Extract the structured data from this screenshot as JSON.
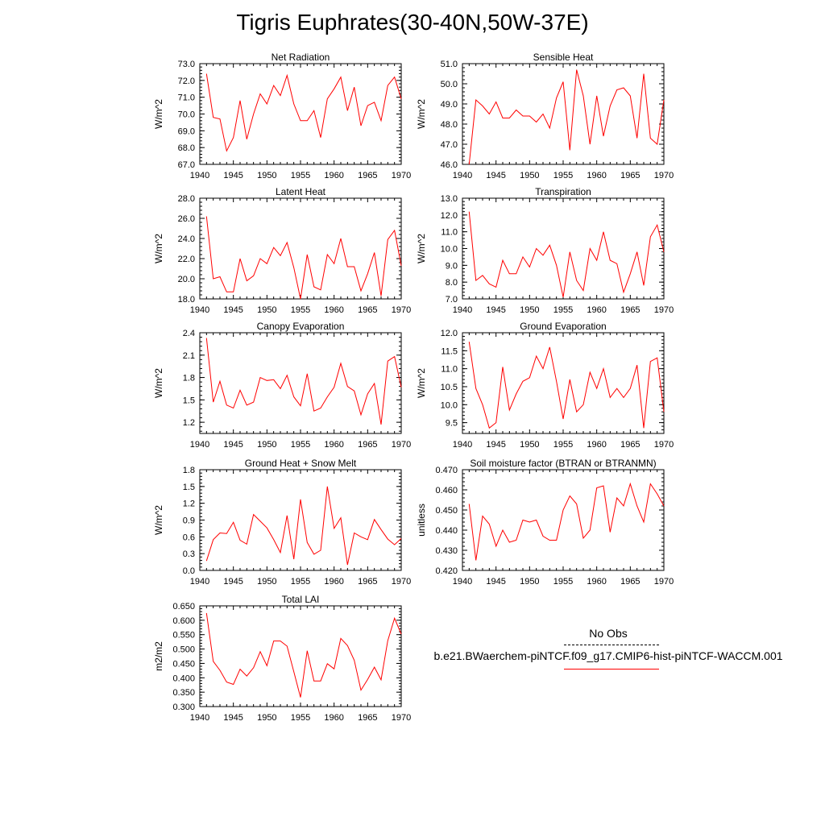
{
  "title": "Tigris Euphrates(30-40N,50W-37E)",
  "legend": {
    "obs_label": "No Obs",
    "model_label": "b.e21.BWaerchem-piNTCF.f09_g17.CMIP6-hist-piNTCF-WACCM.001",
    "model_color": "#ff0000"
  },
  "chart_data": [
    {
      "type": "line",
      "title": "Net Radiation",
      "ylabel": "W/m^2",
      "x": [
        1941,
        1942,
        1943,
        1944,
        1945,
        1946,
        1947,
        1948,
        1949,
        1950,
        1951,
        1952,
        1953,
        1954,
        1955,
        1956,
        1957,
        1958,
        1959,
        1960,
        1961,
        1962,
        1963,
        1964,
        1965,
        1966,
        1967,
        1968,
        1969,
        1970
      ],
      "y": [
        72.4,
        69.8,
        69.7,
        67.8,
        68.6,
        70.8,
        68.5,
        70.0,
        71.2,
        70.6,
        71.7,
        71.1,
        72.3,
        70.6,
        69.6,
        69.6,
        70.2,
        68.6,
        70.9,
        71.5,
        72.2,
        70.2,
        71.6,
        69.3,
        70.5,
        70.7,
        69.6,
        71.7,
        72.2,
        70.9
      ],
      "xlim": [
        1940,
        1970
      ],
      "ylim": [
        67.0,
        73.0
      ],
      "xticks": [
        "1940",
        "1945",
        "1950",
        "1955",
        "1960",
        "1965",
        "1970"
      ],
      "yticks": [
        "67.0",
        "68.0",
        "69.0",
        "70.0",
        "71.0",
        "72.0",
        "73.0"
      ],
      "color": "#ff0000"
    },
    {
      "type": "line",
      "title": "Sensible Heat",
      "ylabel": "W/m^2",
      "x": [
        1941,
        1942,
        1943,
        1944,
        1945,
        1946,
        1947,
        1948,
        1949,
        1950,
        1951,
        1952,
        1953,
        1954,
        1955,
        1956,
        1957,
        1958,
        1959,
        1960,
        1961,
        1962,
        1963,
        1964,
        1965,
        1966,
        1967,
        1968,
        1969,
        1970
      ],
      "y": [
        46.0,
        49.2,
        48.9,
        48.5,
        49.1,
        48.3,
        48.3,
        48.7,
        48.4,
        48.4,
        48.1,
        48.5,
        47.8,
        49.3,
        50.1,
        46.7,
        50.7,
        49.4,
        47.0,
        49.4,
        47.4,
        48.9,
        49.7,
        49.8,
        49.4,
        47.3,
        50.5,
        47.3,
        47.0,
        49.2
      ],
      "xlim": [
        1940,
        1970
      ],
      "ylim": [
        46.0,
        51.0
      ],
      "xticks": [
        "1940",
        "1945",
        "1950",
        "1955",
        "1960",
        "1965",
        "1970"
      ],
      "yticks": [
        "46.0",
        "47.0",
        "48.0",
        "49.0",
        "50.0",
        "51.0"
      ],
      "color": "#ff0000"
    },
    {
      "type": "line",
      "title": "Latent Heat",
      "ylabel": "W/m^2",
      "x": [
        1941,
        1942,
        1943,
        1944,
        1945,
        1946,
        1947,
        1948,
        1949,
        1950,
        1951,
        1952,
        1953,
        1954,
        1955,
        1956,
        1957,
        1958,
        1959,
        1960,
        1961,
        1962,
        1963,
        1964,
        1965,
        1966,
        1967,
        1968,
        1969,
        1970
      ],
      "y": [
        26.2,
        20.0,
        20.2,
        18.7,
        18.7,
        22.0,
        19.8,
        20.3,
        22.0,
        21.5,
        23.1,
        22.3,
        23.6,
        21.1,
        18.0,
        22.4,
        19.2,
        18.9,
        22.4,
        21.5,
        24.0,
        21.2,
        21.2,
        18.8,
        20.5,
        22.6,
        18.3,
        23.9,
        24.8,
        21.3
      ],
      "xlim": [
        1940,
        1970
      ],
      "ylim": [
        18.0,
        28.0
      ],
      "xticks": [
        "1940",
        "1945",
        "1950",
        "1955",
        "1960",
        "1965",
        "1970"
      ],
      "yticks": [
        "18.0",
        "20.0",
        "22.0",
        "24.0",
        "26.0",
        "28.0"
      ],
      "color": "#ff0000"
    },
    {
      "type": "line",
      "title": "Transpiration",
      "ylabel": "W/m^2",
      "x": [
        1941,
        1942,
        1943,
        1944,
        1945,
        1946,
        1947,
        1948,
        1949,
        1950,
        1951,
        1952,
        1953,
        1954,
        1955,
        1956,
        1957,
        1958,
        1959,
        1960,
        1961,
        1962,
        1963,
        1964,
        1965,
        1966,
        1967,
        1968,
        1969,
        1970
      ],
      "y": [
        12.2,
        8.1,
        8.4,
        7.9,
        7.7,
        9.3,
        8.5,
        8.5,
        9.5,
        8.9,
        10.0,
        9.6,
        10.2,
        9.0,
        7.1,
        9.8,
        8.1,
        7.5,
        10.0,
        9.3,
        11.0,
        9.3,
        9.1,
        7.4,
        8.5,
        9.8,
        7.8,
        10.7,
        11.4,
        9.8
      ],
      "xlim": [
        1940,
        1970
      ],
      "ylim": [
        7.0,
        13.0
      ],
      "xticks": [
        "1940",
        "1945",
        "1950",
        "1955",
        "1960",
        "1965",
        "1970"
      ],
      "yticks": [
        "7.0",
        "8.0",
        "9.0",
        "10.0",
        "11.0",
        "12.0",
        "13.0"
      ],
      "color": "#ff0000"
    },
    {
      "type": "line",
      "title": "Canopy Evaporation",
      "ylabel": "W/m^2",
      "x": [
        1941,
        1942,
        1943,
        1944,
        1945,
        1946,
        1947,
        1948,
        1949,
        1950,
        1951,
        1952,
        1953,
        1954,
        1955,
        1956,
        1957,
        1958,
        1959,
        1960,
        1961,
        1962,
        1963,
        1964,
        1965,
        1966,
        1967,
        1968,
        1969,
        1970
      ],
      "y": [
        2.33,
        1.47,
        1.75,
        1.43,
        1.39,
        1.63,
        1.43,
        1.47,
        1.8,
        1.76,
        1.77,
        1.65,
        1.83,
        1.54,
        1.42,
        1.85,
        1.35,
        1.39,
        1.54,
        1.67,
        1.99,
        1.68,
        1.62,
        1.3,
        1.58,
        1.72,
        1.17,
        2.02,
        2.08,
        1.67
      ],
      "xlim": [
        1940,
        1970
      ],
      "ylim": [
        1.05,
        2.4
      ],
      "xticks": [
        "1940",
        "1945",
        "1950",
        "1955",
        "1960",
        "1965",
        "1970"
      ],
      "yticks": [
        "1.2",
        "1.5",
        "1.8",
        "2.1",
        "2.4"
      ],
      "yticks_values": [
        1.2,
        1.5,
        1.8,
        2.1,
        2.4
      ],
      "color": "#ff0000"
    },
    {
      "type": "line",
      "title": "Ground Evaporation",
      "ylabel": "W/m^2",
      "x": [
        1941,
        1942,
        1943,
        1944,
        1945,
        1946,
        1947,
        1948,
        1949,
        1950,
        1951,
        1952,
        1953,
        1954,
        1955,
        1956,
        1957,
        1958,
        1959,
        1960,
        1961,
        1962,
        1963,
        1964,
        1965,
        1966,
        1967,
        1968,
        1969,
        1970
      ],
      "y": [
        11.75,
        10.45,
        10.0,
        9.35,
        9.5,
        11.05,
        9.85,
        10.3,
        10.65,
        10.75,
        11.35,
        11.0,
        11.6,
        10.65,
        9.6,
        10.7,
        9.8,
        10.0,
        10.9,
        10.45,
        11.0,
        10.2,
        10.45,
        10.2,
        10.45,
        11.1,
        9.35,
        11.2,
        11.3,
        9.8
      ],
      "xlim": [
        1940,
        1970
      ],
      "ylim": [
        9.2,
        12.0
      ],
      "xticks": [
        "1940",
        "1945",
        "1950",
        "1955",
        "1960",
        "1965",
        "1970"
      ],
      "yticks": [
        "9.5",
        "10.0",
        "10.5",
        "11.0",
        "11.5",
        "12.0"
      ],
      "yticks_values": [
        9.5,
        10.0,
        10.5,
        11.0,
        11.5,
        12.0
      ],
      "color": "#ff0000"
    },
    {
      "type": "line",
      "title": "Ground Heat + Snow Melt",
      "ylabel": "W/m^2",
      "x": [
        1941,
        1942,
        1943,
        1944,
        1945,
        1946,
        1947,
        1948,
        1949,
        1950,
        1951,
        1952,
        1953,
        1954,
        1955,
        1956,
        1957,
        1958,
        1959,
        1960,
        1961,
        1962,
        1963,
        1964,
        1965,
        1966,
        1967,
        1968,
        1969,
        1970
      ],
      "y": [
        0.17,
        0.55,
        0.67,
        0.66,
        0.86,
        0.54,
        0.47,
        1.0,
        0.88,
        0.76,
        0.55,
        0.32,
        0.98,
        0.2,
        1.27,
        0.5,
        0.29,
        0.36,
        1.5,
        0.75,
        0.94,
        0.1,
        0.67,
        0.6,
        0.55,
        0.91,
        0.73,
        0.56,
        0.46,
        0.57
      ],
      "xlim": [
        1940,
        1970
      ],
      "ylim": [
        0.0,
        1.8
      ],
      "xticks": [
        "1940",
        "1945",
        "1950",
        "1955",
        "1960",
        "1965",
        "1970"
      ],
      "yticks": [
        "0.0",
        "0.3",
        "0.6",
        "0.9",
        "1.2",
        "1.5",
        "1.8"
      ],
      "color": "#ff0000"
    },
    {
      "type": "line",
      "title": "Soil moisture factor (BTRAN or BTRANMN)",
      "ylabel": "unitless",
      "x": [
        1941,
        1942,
        1943,
        1944,
        1945,
        1946,
        1947,
        1948,
        1949,
        1950,
        1951,
        1952,
        1953,
        1954,
        1955,
        1956,
        1957,
        1958,
        1959,
        1960,
        1961,
        1962,
        1963,
        1964,
        1965,
        1966,
        1967,
        1968,
        1969,
        1970
      ],
      "y": [
        0.453,
        0.425,
        0.447,
        0.443,
        0.432,
        0.44,
        0.434,
        0.435,
        0.445,
        0.444,
        0.445,
        0.437,
        0.435,
        0.435,
        0.45,
        0.457,
        0.453,
        0.436,
        0.44,
        0.461,
        0.462,
        0.439,
        0.456,
        0.452,
        0.463,
        0.452,
        0.444,
        0.463,
        0.458,
        0.452
      ],
      "xlim": [
        1940,
        1970
      ],
      "ylim": [
        0.42,
        0.47
      ],
      "xticks": [
        "1940",
        "1945",
        "1950",
        "1955",
        "1960",
        "1965",
        "1970"
      ],
      "yticks": [
        "0.420",
        "0.430",
        "0.440",
        "0.450",
        "0.460",
        "0.470"
      ],
      "color": "#ff0000"
    },
    {
      "type": "line",
      "title": "Total LAI",
      "ylabel": "m2/m2",
      "x": [
        1941,
        1942,
        1943,
        1944,
        1945,
        1946,
        1947,
        1948,
        1949,
        1950,
        1951,
        1952,
        1953,
        1954,
        1955,
        1956,
        1957,
        1958,
        1959,
        1960,
        1961,
        1962,
        1963,
        1964,
        1965,
        1966,
        1967,
        1968,
        1969,
        1970
      ],
      "y": [
        0.625,
        0.457,
        0.426,
        0.385,
        0.377,
        0.43,
        0.406,
        0.435,
        0.491,
        0.442,
        0.528,
        0.528,
        0.51,
        0.421,
        0.332,
        0.494,
        0.389,
        0.389,
        0.449,
        0.431,
        0.537,
        0.512,
        0.461,
        0.357,
        0.394,
        0.437,
        0.393,
        0.529,
        0.607,
        0.552
      ],
      "xlim": [
        1940,
        1970
      ],
      "ylim": [
        0.3,
        0.65
      ],
      "xticks": [
        "1940",
        "1945",
        "1950",
        "1955",
        "1960",
        "1965",
        "1970"
      ],
      "yticks": [
        "0.300",
        "0.350",
        "0.400",
        "0.450",
        "0.500",
        "0.550",
        "0.600",
        "0.650"
      ],
      "color": "#ff0000"
    }
  ]
}
